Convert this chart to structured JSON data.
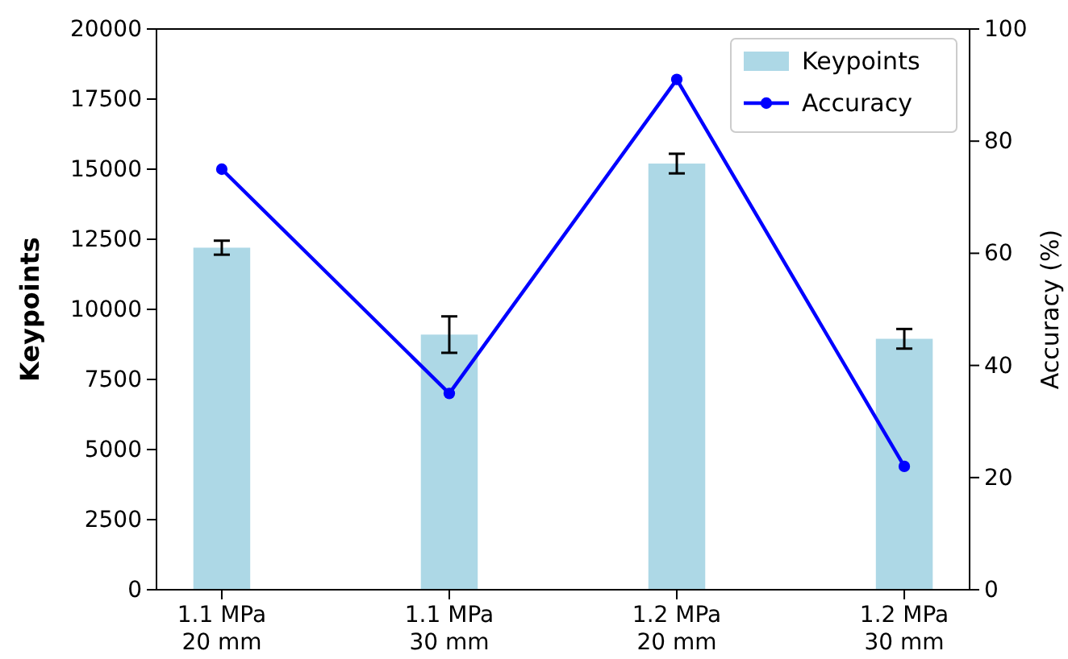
{
  "chart_data": {
    "type": "bar",
    "categories": [
      "1.1 MPa\n20 mm",
      "1.1 MPa\n30 mm",
      "1.2 MPa\n20 mm",
      "1.2 MPa\n30 mm"
    ],
    "series": [
      {
        "name": "Keypoints",
        "color": "#add8e6",
        "values": [
          12200,
          9100,
          15200,
          8950
        ],
        "errors": [
          250,
          650,
          350,
          350
        ]
      },
      {
        "name": "Accuracy",
        "type": "line",
        "axis": "y2",
        "color": "#0000ff",
        "values": [
          75,
          35,
          91,
          22
        ],
        "marker": "circle",
        "line_style": "solid"
      }
    ],
    "ylabel": "Keypoints",
    "y2label": "Accuracy (%)",
    "ylim": [
      0,
      20000
    ],
    "yticks": [
      0,
      2500,
      5000,
      7500,
      10000,
      12500,
      15000,
      17500,
      20000
    ],
    "y2lim": [
      0,
      100
    ],
    "y2ticks": [
      0,
      20,
      40,
      60,
      80,
      100
    ],
    "legend": "top right"
  }
}
